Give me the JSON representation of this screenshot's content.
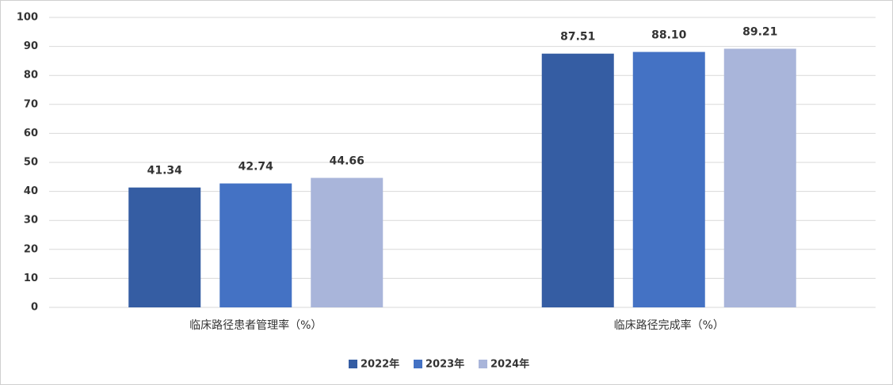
{
  "chart_data": {
    "type": "bar",
    "categories": [
      "临床路径患者管理率（%）",
      "临床路径完成率（%）"
    ],
    "series": [
      {
        "name": "2022年",
        "color": "#355da3",
        "values": [
          41.34,
          87.51
        ]
      },
      {
        "name": "2023年",
        "color": "#4472c4",
        "values": [
          42.74,
          88.1
        ],
        "value_labels": [
          "42.74",
          "88.10"
        ]
      },
      {
        "name": "2024年",
        "color": "#a9b5da",
        "values": [
          44.66,
          89.21
        ]
      }
    ],
    "ylim": [
      0,
      100
    ],
    "yticks": [
      0,
      10,
      20,
      30,
      40,
      50,
      60,
      70,
      80,
      90,
      100
    ],
    "grid": true,
    "legend": "bottom"
  }
}
